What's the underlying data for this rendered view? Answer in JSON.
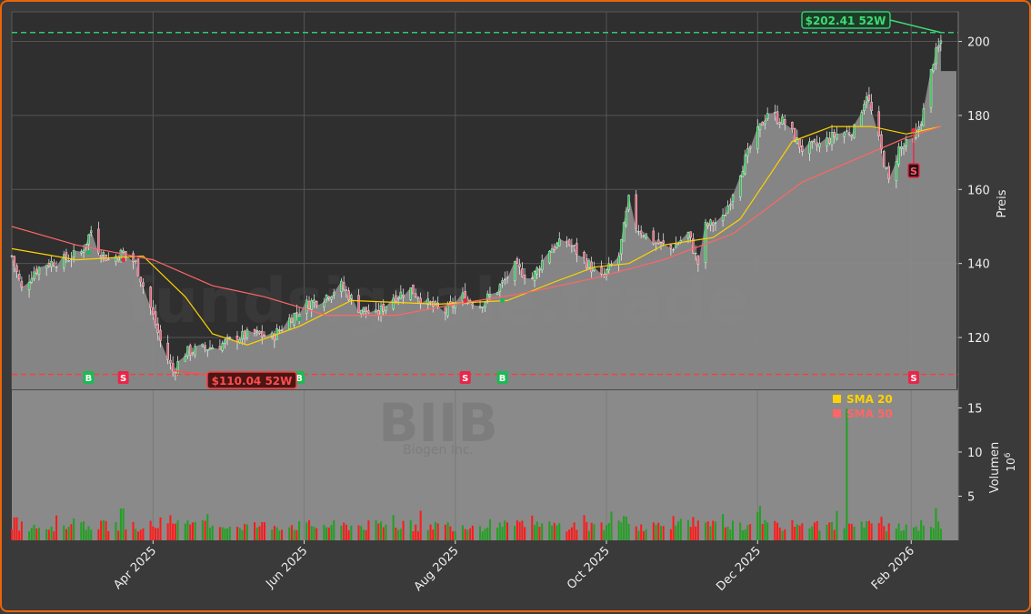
{
  "chart_data": {
    "type": "candlestick",
    "price_panel": {
      "ylabel": "Preis",
      "ylim": [
        106,
        208
      ],
      "yticks": [
        120,
        140,
        160,
        180,
        200
      ],
      "grid": true
    },
    "volume_panel": {
      "ylabel": "Volumen",
      "yunit_base": "10",
      "yunit_exp": "6",
      "ylim": [
        0,
        17
      ],
      "yticks": [
        5,
        10,
        15
      ],
      "peak_value": 14.9,
      "peak_date": "2026-01-06"
    },
    "x_range": [
      "2025-02-03",
      "2026-02-20"
    ],
    "x_ticks": [
      {
        "label": "Apr 2025",
        "date": "2025-04-01"
      },
      {
        "label": "Jun 2025",
        "date": "2025-06-01"
      },
      {
        "label": "Aug 2025",
        "date": "2025-08-01"
      },
      {
        "label": "Oct 2025",
        "date": "2025-10-01"
      },
      {
        "label": "Dec 2025",
        "date": "2025-12-01"
      },
      {
        "label": "Feb 2026",
        "date": "2026-02-01"
      }
    ],
    "watermark": {
      "text": "fundsignale.trade",
      "ticker": "BIIB",
      "company": "Biogen Inc."
    },
    "price_path": [
      [
        "2025-02-03",
        142
      ],
      [
        "2025-02-07",
        133
      ],
      [
        "2025-02-12",
        138
      ],
      [
        "2025-02-17",
        140
      ],
      [
        "2025-02-24",
        141
      ],
      [
        "2025-03-03",
        143
      ],
      [
        "2025-03-07",
        149
      ],
      [
        "2025-03-10",
        144
      ],
      [
        "2025-03-14",
        141
      ],
      [
        "2025-03-20",
        143
      ],
      [
        "2025-03-25",
        140
      ],
      [
        "2025-03-31",
        128
      ],
      [
        "2025-04-04",
        119
      ],
      [
        "2025-04-09",
        111
      ],
      [
        "2025-04-14",
        116
      ],
      [
        "2025-04-21",
        117
      ],
      [
        "2025-04-28",
        118
      ],
      [
        "2025-05-05",
        120
      ],
      [
        "2025-05-12",
        121
      ],
      [
        "2025-05-19",
        120
      ],
      [
        "2025-05-26",
        125
      ],
      [
        "2025-06-02",
        129
      ],
      [
        "2025-06-09",
        131
      ],
      [
        "2025-06-16",
        134
      ],
      [
        "2025-06-23",
        128
      ],
      [
        "2025-06-30",
        126
      ],
      [
        "2025-07-07",
        131
      ],
      [
        "2025-07-14",
        133
      ],
      [
        "2025-07-21",
        129
      ],
      [
        "2025-07-28",
        127
      ],
      [
        "2025-08-04",
        131
      ],
      [
        "2025-08-11",
        129
      ],
      [
        "2025-08-18",
        133
      ],
      [
        "2025-08-25",
        139
      ],
      [
        "2025-09-01",
        136
      ],
      [
        "2025-09-08",
        144
      ],
      [
        "2025-09-15",
        146
      ],
      [
        "2025-09-22",
        141
      ],
      [
        "2025-09-29",
        136
      ],
      [
        "2025-10-06",
        142
      ],
      [
        "2025-10-10",
        157
      ],
      [
        "2025-10-13",
        150
      ],
      [
        "2025-10-20",
        146
      ],
      [
        "2025-10-27",
        144
      ],
      [
        "2025-11-03",
        148
      ],
      [
        "2025-11-07",
        140
      ],
      [
        "2025-11-10",
        150
      ],
      [
        "2025-11-17",
        152
      ],
      [
        "2025-11-24",
        165
      ],
      [
        "2025-11-28",
        171
      ],
      [
        "2025-12-05",
        181
      ],
      [
        "2025-12-12",
        178
      ],
      [
        "2025-12-19",
        171
      ],
      [
        "2025-12-26",
        172
      ],
      [
        "2026-01-02",
        175
      ],
      [
        "2026-01-09",
        176
      ],
      [
        "2026-01-14",
        186
      ],
      [
        "2026-01-19",
        173
      ],
      [
        "2026-01-23",
        162
      ],
      [
        "2026-01-27",
        171
      ],
      [
        "2026-02-02",
        173
      ],
      [
        "2026-02-06",
        181
      ],
      [
        "2026-02-10",
        195
      ],
      [
        "2026-02-13",
        200
      ]
    ],
    "series": [
      {
        "name": "SMA 20",
        "color": "#ffd200",
        "values": [
          [
            "2025-02-03",
            144
          ],
          [
            "2025-03-01",
            141
          ],
          [
            "2025-03-28",
            142
          ],
          [
            "2025-04-14",
            131
          ],
          [
            "2025-04-25",
            121
          ],
          [
            "2025-05-09",
            118
          ],
          [
            "2025-05-30",
            123
          ],
          [
            "2025-06-20",
            130
          ],
          [
            "2025-07-25",
            129
          ],
          [
            "2025-08-22",
            130
          ],
          [
            "2025-09-10",
            135
          ],
          [
            "2025-09-26",
            139
          ],
          [
            "2025-10-10",
            140
          ],
          [
            "2025-10-24",
            145
          ],
          [
            "2025-11-13",
            147
          ],
          [
            "2025-11-24",
            152
          ],
          [
            "2025-12-05",
            163
          ],
          [
            "2025-12-15",
            173
          ],
          [
            "2025-12-31",
            177
          ],
          [
            "2026-01-16",
            177
          ],
          [
            "2026-01-30",
            175
          ],
          [
            "2026-02-13",
            177
          ]
        ]
      },
      {
        "name": "SMA 50",
        "color": "#ff6666",
        "values": [
          [
            "2025-02-03",
            150
          ],
          [
            "2025-03-01",
            145
          ],
          [
            "2025-04-01",
            141
          ],
          [
            "2025-04-25",
            134
          ],
          [
            "2025-05-16",
            131
          ],
          [
            "2025-06-10",
            126
          ],
          [
            "2025-07-08",
            126
          ],
          [
            "2025-08-01",
            129
          ],
          [
            "2025-08-29",
            132
          ],
          [
            "2025-09-26",
            136
          ],
          [
            "2025-10-24",
            141
          ],
          [
            "2025-11-21",
            148
          ],
          [
            "2025-12-05",
            155
          ],
          [
            "2025-12-19",
            162
          ],
          [
            "2026-01-09",
            168
          ],
          [
            "2026-01-30",
            174
          ],
          [
            "2026-02-13",
            177
          ]
        ]
      }
    ],
    "signals": [
      {
        "type": "B",
        "date": "2025-03-06",
        "price": 143
      },
      {
        "type": "S",
        "date": "2025-03-20",
        "price": 141
      },
      {
        "type": "B",
        "date": "2025-05-30",
        "price": 125
      },
      {
        "type": "S",
        "date": "2025-08-05",
        "price": 130
      },
      {
        "type": "B",
        "date": "2025-08-20",
        "price": 130
      },
      {
        "type": "S",
        "date": "2026-02-02",
        "price": 176
      }
    ],
    "high_52w": {
      "label": "$202.41 52W",
      "value": 202.41,
      "date": "2026-02-13"
    },
    "low_52w": {
      "label": "$110.04 52W",
      "value": 110.04,
      "date": "2025-04-09"
    },
    "legend": [
      {
        "label": "SMA 20",
        "color": "#ffd200"
      },
      {
        "label": "SMA 50",
        "color": "#ff6666"
      }
    ],
    "legend_position": "top-right of volume panel"
  },
  "colors": {
    "background": "#3a3a3a",
    "panel": "#2f2f2f",
    "area": "#8a8a8a",
    "up": "#22a022",
    "down": "#ff1a1a",
    "border": "#e8650c"
  }
}
